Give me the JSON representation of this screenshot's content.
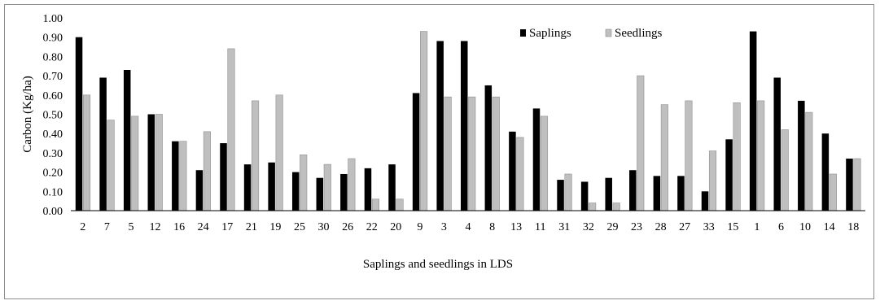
{
  "chart_data": {
    "type": "bar",
    "title": "",
    "xlabel": "Saplings and seedlings in LDS",
    "ylabel": "Carbon (Kg/ha)",
    "ylim": [
      0,
      1.0
    ],
    "yticks": [
      "0.00",
      "0.10",
      "0.20",
      "0.30",
      "0.40",
      "0.50",
      "0.60",
      "0.70",
      "0.80",
      "0.90",
      "1.00"
    ],
    "grid": false,
    "legend_position": "top-center",
    "categories": [
      "2",
      "7",
      "5",
      "12",
      "16",
      "24",
      "17",
      "21",
      "19",
      "25",
      "30",
      "26",
      "22",
      "20",
      "9",
      "3",
      "4",
      "8",
      "13",
      "11",
      "31",
      "32",
      "29",
      "23",
      "28",
      "27",
      "33",
      "15",
      "1",
      "6",
      "10",
      "14",
      "18"
    ],
    "series": [
      {
        "name": "Saplings",
        "color": "#000000",
        "values": [
          0.9,
          0.69,
          0.73,
          0.5,
          0.36,
          0.21,
          0.35,
          0.24,
          0.25,
          0.2,
          0.17,
          0.19,
          0.22,
          0.24,
          0.61,
          0.88,
          0.88,
          0.65,
          0.41,
          0.53,
          0.16,
          0.15,
          0.17,
          0.21,
          0.18,
          0.18,
          0.1,
          0.37,
          0.93,
          0.69,
          0.57,
          0.4,
          0.27
        ]
      },
      {
        "name": "Seedlings",
        "color": "#bfbfbf",
        "values": [
          0.6,
          0.47,
          0.49,
          0.5,
          0.36,
          0.41,
          0.84,
          0.57,
          0.6,
          0.29,
          0.24,
          0.27,
          0.06,
          0.06,
          0.93,
          0.59,
          0.59,
          0.59,
          0.38,
          0.49,
          0.19,
          0.04,
          0.04,
          0.7,
          0.55,
          0.57,
          0.31,
          0.56,
          0.57,
          0.42,
          0.51,
          0.19,
          0.27
        ]
      }
    ]
  }
}
